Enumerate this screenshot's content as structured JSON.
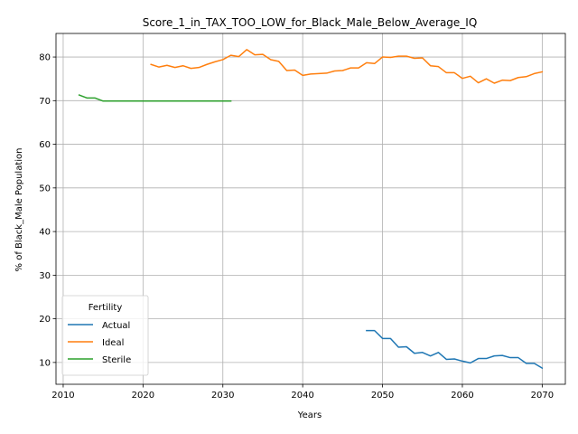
{
  "chart_data": {
    "type": "line",
    "title": "Score_1_in_TAX_TOO_LOW_for_Black_Male_Below_Average_IQ",
    "xlabel": "Years",
    "ylabel": "% of Black_Male Population",
    "xlim": [
      2009.1,
      2072.9
    ],
    "ylim": [
      5.0,
      85.4
    ],
    "x_ticks": [
      2010,
      2020,
      2030,
      2040,
      2050,
      2060,
      2070
    ],
    "y_ticks": [
      10,
      20,
      30,
      40,
      50,
      60,
      70,
      80
    ],
    "grid": true,
    "legend": {
      "title": "Fertility",
      "position": "lower-left"
    },
    "series": [
      {
        "name": "Actual",
        "color": "#1f77b4",
        "x": [
          2048,
          2049,
          2050,
          2051,
          2052,
          2053,
          2054,
          2055,
          2056,
          2057,
          2058,
          2059,
          2060,
          2061,
          2062,
          2063,
          2064,
          2065,
          2066,
          2067,
          2068,
          2069,
          2070
        ],
        "y": [
          17.3,
          17.3,
          15.5,
          15.5,
          13.5,
          13.6,
          12.1,
          12.3,
          11.5,
          12.3,
          10.7,
          10.8,
          10.3,
          9.9,
          10.9,
          10.9,
          11.5,
          11.6,
          11.1,
          11.1,
          9.8,
          9.8,
          8.7
        ]
      },
      {
        "name": "Ideal",
        "color": "#ff7f0e",
        "x": [
          2021,
          2022,
          2023,
          2024,
          2025,
          2026,
          2027,
          2028,
          2029,
          2030,
          2031,
          2032,
          2033,
          2034,
          2035,
          2036,
          2037,
          2038,
          2039,
          2040,
          2041,
          2042,
          2043,
          2044,
          2045,
          2046,
          2047,
          2048,
          2049,
          2050,
          2051,
          2052,
          2053,
          2054,
          2055,
          2056,
          2057,
          2058,
          2059,
          2060,
          2061,
          2062,
          2063,
          2064,
          2065,
          2066,
          2067,
          2068,
          2069,
          2070
        ],
        "y": [
          78.3,
          77.7,
          78.1,
          77.6,
          78.0,
          77.4,
          77.6,
          78.3,
          78.9,
          79.4,
          80.4,
          80.1,
          81.7,
          80.5,
          80.6,
          79.4,
          79.0,
          76.9,
          77.0,
          75.8,
          76.1,
          76.2,
          76.3,
          76.8,
          76.9,
          77.5,
          77.5,
          78.7,
          78.5,
          80.0,
          79.9,
          80.2,
          80.2,
          79.7,
          79.8,
          78.0,
          77.8,
          76.4,
          76.4,
          75.1,
          75.6,
          74.1,
          75.0,
          74.0,
          74.7,
          74.6,
          75.3,
          75.5,
          76.2,
          76.6
        ]
      },
      {
        "name": "Sterile",
        "color": "#2ca02c",
        "x": [
          2012,
          2013,
          2014,
          2015,
          2016,
          2017,
          2018,
          2019,
          2020,
          2021,
          2022,
          2023,
          2024,
          2025,
          2026,
          2027,
          2028,
          2029,
          2030,
          2031
        ],
        "y": [
          71.3,
          70.6,
          70.6,
          69.9,
          69.9,
          69.9,
          69.9,
          69.9,
          69.9,
          69.9,
          69.9,
          69.9,
          69.9,
          69.9,
          69.9,
          69.9,
          69.9,
          69.9,
          69.9,
          69.9
        ]
      }
    ]
  }
}
